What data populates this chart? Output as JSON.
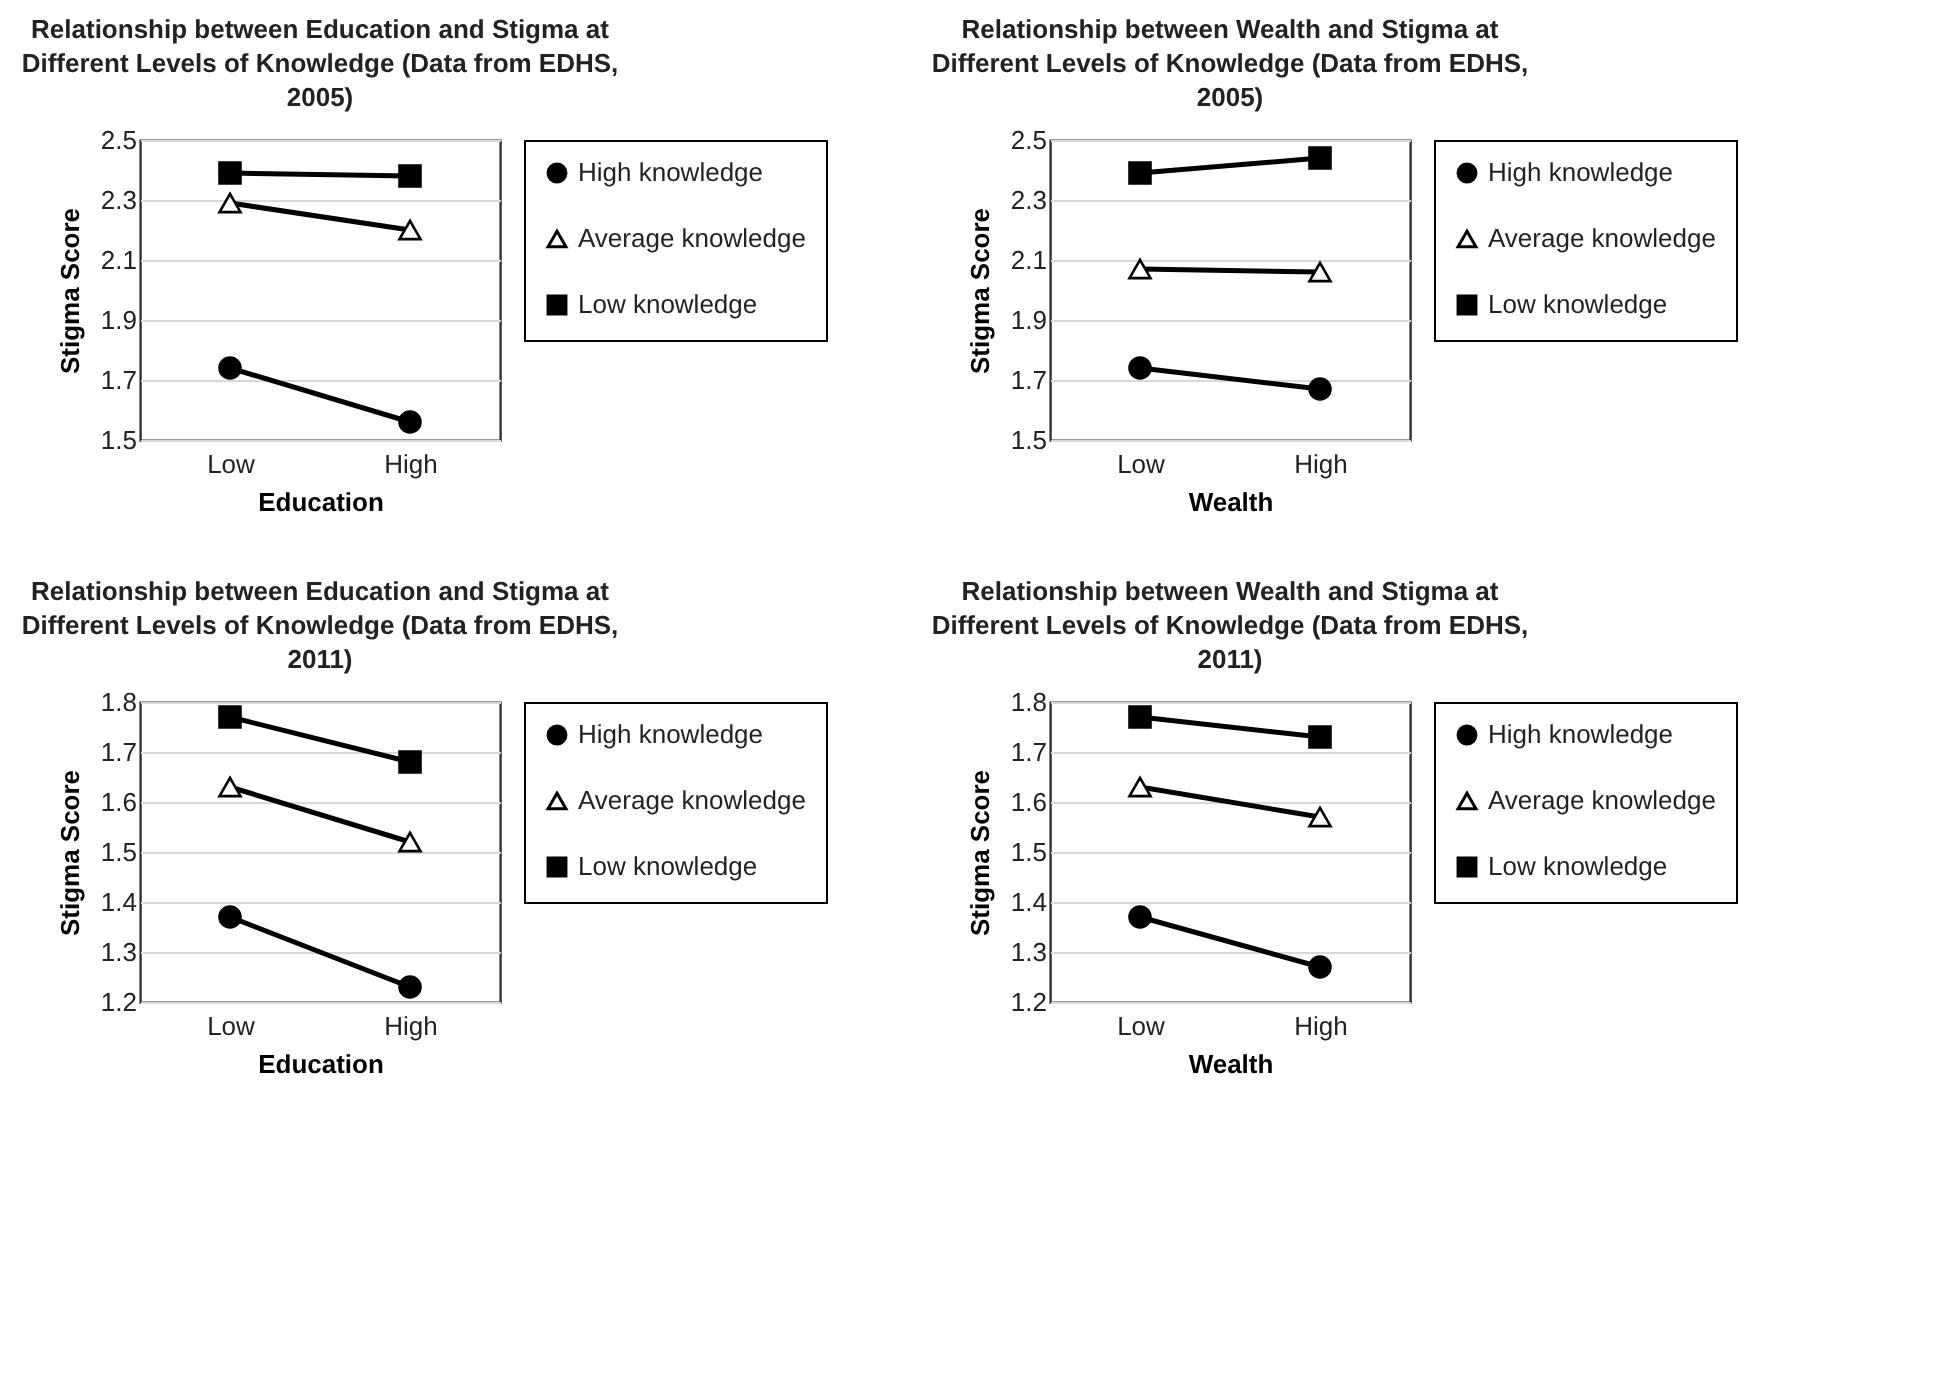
{
  "chart_data": [
    {
      "type": "line",
      "title": "Relationship between Education and Stigma at Different Levels of Knowledge (Data from EDHS, 2005)",
      "xlabel": "Education",
      "ylabel": "Stigma Score",
      "categories": [
        "Low",
        "High"
      ],
      "ylim": [
        1.5,
        2.5
      ],
      "yticks": [
        1.5,
        1.7,
        1.9,
        2.1,
        2.3,
        2.5
      ],
      "grid": "y",
      "legend": "right",
      "line_style": "solid",
      "series": [
        {
          "name": "High knowledge",
          "color": "#000000",
          "marker": "circle",
          "values": [
            1.74,
            1.56
          ]
        },
        {
          "name": "Average knowledge",
          "color": "#000000",
          "marker": "triangle",
          "values": [
            2.29,
            2.2
          ]
        },
        {
          "name": "Low knowledge",
          "color": "#000000",
          "marker": "square",
          "values": [
            2.39,
            2.38
          ]
        }
      ]
    },
    {
      "type": "line",
      "title": "Relationship between Wealth and Stigma at Different Levels of Knowledge (Data from EDHS, 2005)",
      "xlabel": "Wealth",
      "ylabel": "Stigma Score",
      "categories": [
        "Low",
        "High"
      ],
      "ylim": [
        1.5,
        2.5
      ],
      "yticks": [
        1.5,
        1.7,
        1.9,
        2.1,
        2.3,
        2.5
      ],
      "grid": "y",
      "legend": "right",
      "line_style": "solid",
      "series": [
        {
          "name": "High knowledge",
          "color": "#000000",
          "marker": "circle",
          "values": [
            1.74,
            1.67
          ]
        },
        {
          "name": "Average knowledge",
          "color": "#000000",
          "marker": "triangle",
          "values": [
            2.07,
            2.06
          ]
        },
        {
          "name": "Low knowledge",
          "color": "#000000",
          "marker": "square",
          "values": [
            2.39,
            2.44
          ]
        }
      ]
    },
    {
      "type": "line",
      "title": "Relationship between Education and Stigma at Different Levels of Knowledge (Data from EDHS, 2011)",
      "xlabel": "Education",
      "ylabel": "Stigma Score",
      "categories": [
        "Low",
        "High"
      ],
      "ylim": [
        1.2,
        1.8
      ],
      "yticks": [
        1.2,
        1.3,
        1.4,
        1.5,
        1.6,
        1.7,
        1.8
      ],
      "grid": "y",
      "legend": "right",
      "line_style": "solid",
      "series": [
        {
          "name": "High knowledge",
          "color": "#000000",
          "marker": "circle",
          "values": [
            1.37,
            1.23
          ]
        },
        {
          "name": "Average knowledge",
          "color": "#000000",
          "marker": "triangle",
          "values": [
            1.63,
            1.52
          ]
        },
        {
          "name": "Low knowledge",
          "color": "#000000",
          "marker": "square",
          "values": [
            1.77,
            1.68
          ]
        }
      ]
    },
    {
      "type": "line",
      "title": "Relationship between Wealth and Stigma at Different Levels of Knowledge (Data from EDHS, 2011)",
      "xlabel": "Wealth",
      "ylabel": "Stigma Score",
      "categories": [
        "Low",
        "High"
      ],
      "ylim": [
        1.2,
        1.8
      ],
      "yticks": [
        1.2,
        1.3,
        1.4,
        1.5,
        1.6,
        1.7,
        1.8
      ],
      "grid": "y",
      "legend": "right",
      "line_style": "solid",
      "series": [
        {
          "name": "High knowledge",
          "color": "#000000",
          "marker": "circle",
          "values": [
            1.37,
            1.27
          ]
        },
        {
          "name": "Average knowledge",
          "color": "#000000",
          "marker": "triangle",
          "values": [
            1.63,
            1.57
          ]
        },
        {
          "name": "Low knowledge",
          "color": "#000000",
          "marker": "square",
          "values": [
            1.77,
            1.73
          ]
        }
      ]
    }
  ]
}
